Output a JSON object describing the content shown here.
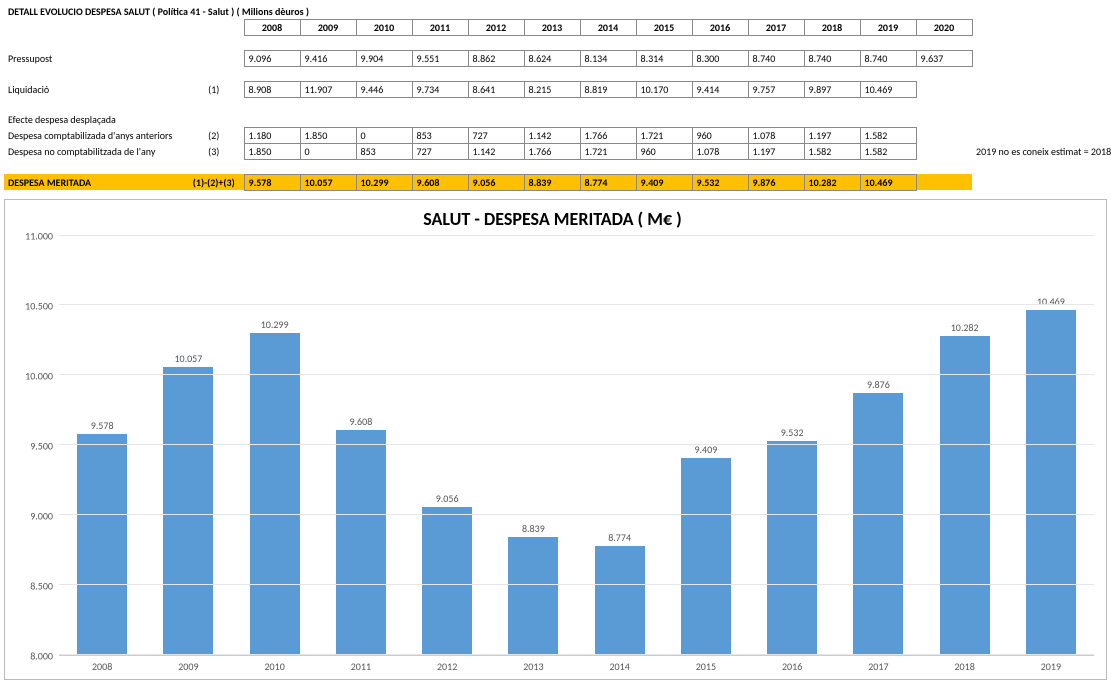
{
  "table": {
    "title": "DETALL EVOLUCIO DESPESA SALUT ( Política 41 - Salut ) ( Milions dèuros )",
    "years": [
      "2008",
      "2009",
      "2010",
      "2011",
      "2012",
      "2013",
      "2014",
      "2015",
      "2016",
      "2017",
      "2018",
      "2019",
      "2020"
    ],
    "rows": {
      "pressupost": {
        "label": "Pressupost",
        "ref": "",
        "values": [
          "9.096",
          "9.416",
          "9.904",
          "9.551",
          "8.862",
          "8.624",
          "8.134",
          "8.314",
          "8.300",
          "8.740",
          "8.740",
          "8.740",
          "9.637"
        ]
      },
      "liquidacio": {
        "label": "Liquidació",
        "ref": "(1)",
        "values": [
          "8.908",
          "11.907",
          "9.446",
          "9.734",
          "8.641",
          "8.215",
          "8.819",
          "10.170",
          "9.414",
          "9.757",
          "9.897",
          "10.469",
          ""
        ]
      },
      "efecte": {
        "label": "Efecte despesa desplaçada",
        "ref": "",
        "values": [
          "",
          "",
          "",
          "",
          "",
          "",
          "",
          "",
          "",
          "",
          "",
          "",
          ""
        ]
      },
      "comptab_anteriors": {
        "label": "Despesa comptabilizada d'anys anteriors",
        "ref": "(2)",
        "values": [
          "1.180",
          "1.850",
          "0",
          "853",
          "727",
          "1.142",
          "1.766",
          "1.721",
          "960",
          "1.078",
          "1.197",
          "1.582",
          ""
        ]
      },
      "no_comptab": {
        "label": "Despesa no comptabilitzada de l'any",
        "ref": "(3)",
        "values": [
          "1.850",
          "0",
          "853",
          "727",
          "1.142",
          "1.766",
          "1.721",
          "960",
          "1.078",
          "1.197",
          "1.582",
          "1.582",
          ""
        ],
        "note": "2019 no es coneix estimat = 2018"
      },
      "meritada": {
        "label": "DESPESA MERITADA",
        "ref": "(1)-(2)+(3)",
        "values": [
          "9.578",
          "10.057",
          "10.299",
          "9.608",
          "9.056",
          "8.839",
          "8.774",
          "9.409",
          "9.532",
          "9.876",
          "10.282",
          "10.469",
          ""
        ]
      }
    }
  },
  "chart": {
    "title": "SALUT - DESPESA MERITADA ( M€ )",
    "type": "bar",
    "categories": [
      "2008",
      "2009",
      "2010",
      "2011",
      "2012",
      "2013",
      "2014",
      "2015",
      "2016",
      "2017",
      "2018",
      "2019"
    ],
    "values": [
      9578,
      10057,
      10299,
      9608,
      9056,
      8839,
      8774,
      9409,
      9532,
      9876,
      10282,
      10469
    ],
    "value_labels": [
      "9.578",
      "10.057",
      "10.299",
      "9.608",
      "9.056",
      "8.839",
      "8.774",
      "9.409",
      "9.532",
      "9.876",
      "10.282",
      "10.469"
    ],
    "bar_color": "#5b9bd5",
    "ylim": [
      8000,
      11000
    ],
    "yticks": [
      8000,
      8500,
      9000,
      9500,
      10000,
      10500,
      11000
    ],
    "ytick_labels": [
      "8.000",
      "8.500",
      "9.000",
      "9.500",
      "10.000",
      "10.500",
      "11.000"
    ],
    "grid_color": "#e6e6e6",
    "background_color": "#ffffff",
    "title_fontsize": 18,
    "label_fontsize": 10,
    "axis_text_color": "#555555"
  }
}
